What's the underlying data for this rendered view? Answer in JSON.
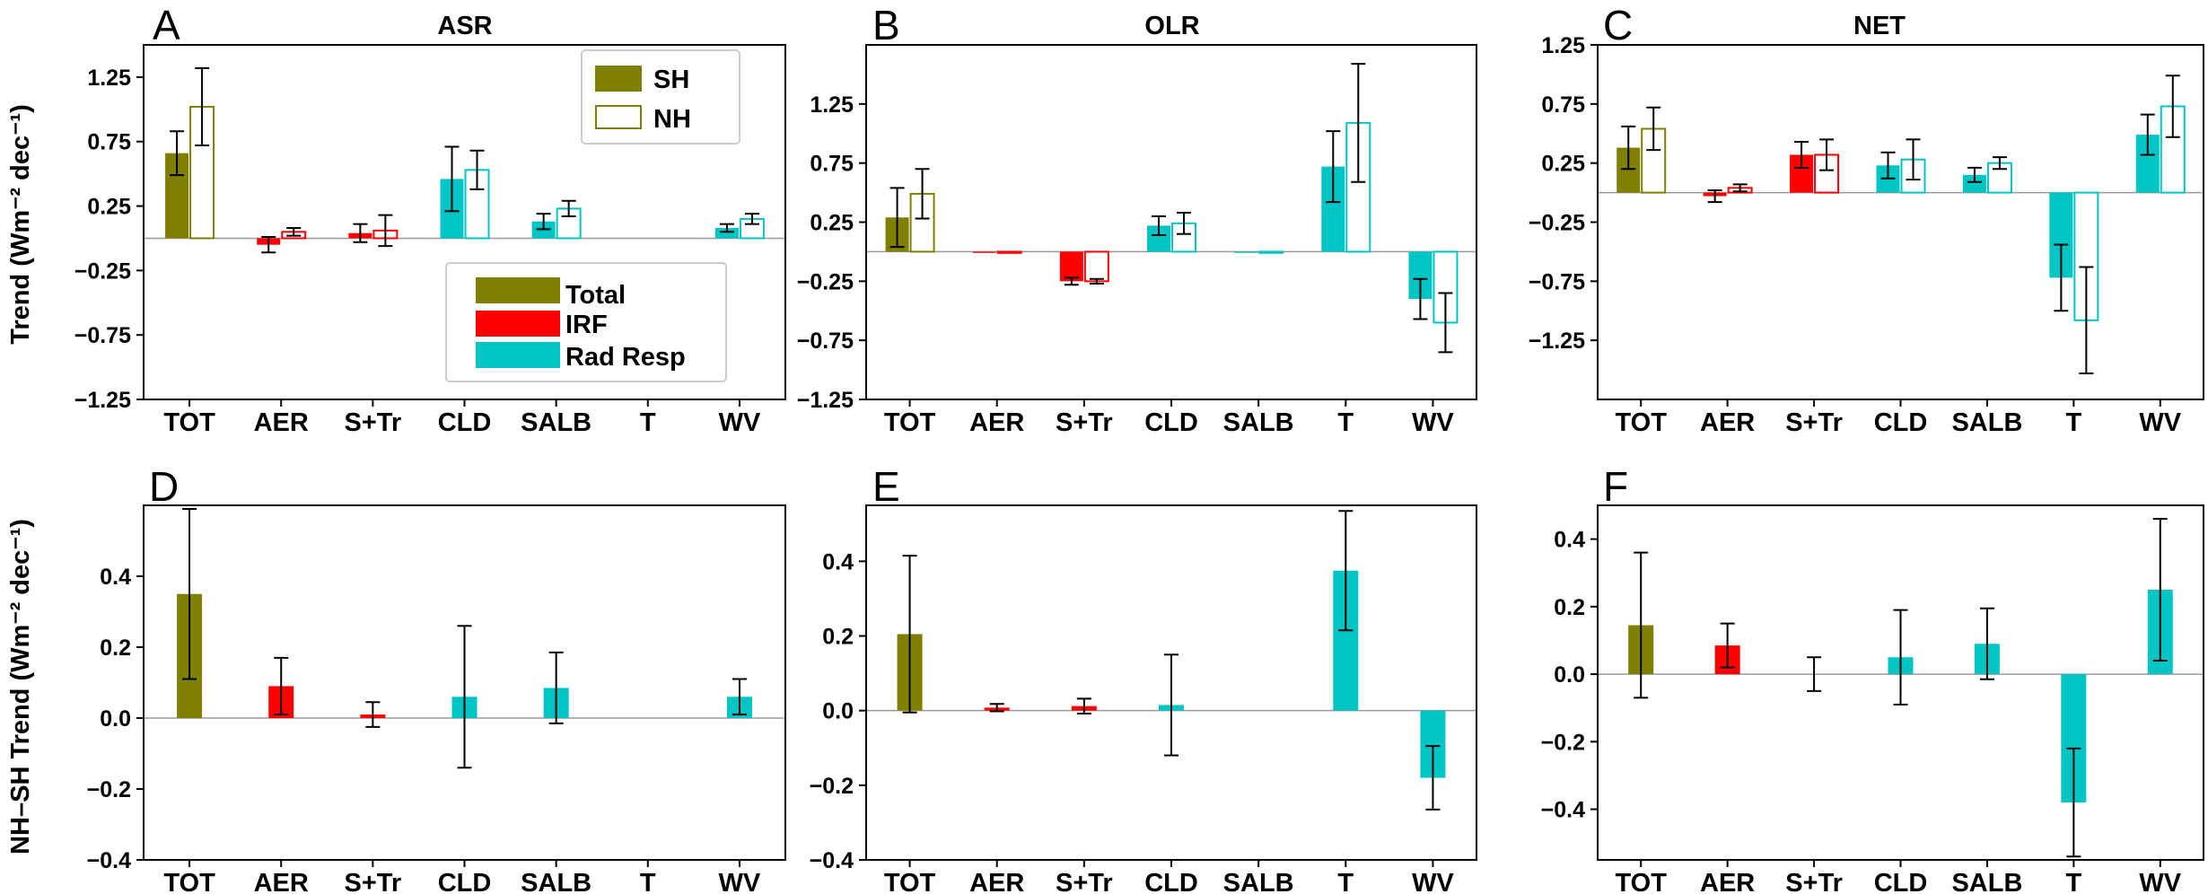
{
  "figure": {
    "ylabel_top": "Trend (Wm⁻² dec⁻¹)",
    "ylabel_bottom": "NH–SH Trend (Wm⁻² dec⁻¹)",
    "legend_hemisphere": [
      {
        "label": "SH",
        "style": "filled",
        "color": "#808000"
      },
      {
        "label": "NH",
        "style": "open",
        "color": "#808000"
      }
    ],
    "legend_components": [
      {
        "label": "Total",
        "color": "#808000"
      },
      {
        "label": "IRF",
        "color": "#ff0000"
      },
      {
        "label": "Rad Resp",
        "color": "#00c5c5"
      }
    ]
  },
  "chart_data": [
    {
      "type": "bar",
      "letter": "A",
      "title": "ASR",
      "categories": [
        "TOT",
        "AER",
        "S+Tr",
        "CLD",
        "SALB",
        "T",
        "WV"
      ],
      "colors": [
        "#808000",
        "#ff0000",
        "#ff0000",
        "#00c5c5",
        "#00c5c5",
        "#00c5c5",
        "#00c5c5"
      ],
      "ylim": [
        -1.25,
        1.5
      ],
      "yticks": [
        -1.25,
        -0.75,
        -0.25,
        0.25,
        0.75,
        1.25
      ],
      "ytick_labels": [
        "−1.25",
        "−0.75",
        "−0.25",
        "0.25",
        "0.75",
        "1.25"
      ],
      "series": [
        {
          "name": "SH",
          "style": "filled",
          "values": [
            0.66,
            -0.05,
            0.04,
            0.46,
            0.13,
            0.0,
            0.08
          ],
          "errors": [
            0.17,
            0.06,
            0.07,
            0.25,
            0.06,
            0.0,
            0.03
          ]
        },
        {
          "name": "NH",
          "style": "open",
          "values": [
            1.02,
            0.05,
            0.06,
            0.53,
            0.23,
            0.0,
            0.15
          ],
          "errors": [
            0.3,
            0.03,
            0.12,
            0.15,
            0.06,
            0.0,
            0.04
          ]
        }
      ]
    },
    {
      "type": "bar",
      "letter": "B",
      "title": "OLR",
      "categories": [
        "TOT",
        "AER",
        "S+Tr",
        "CLD",
        "SALB",
        "T",
        "WV"
      ],
      "colors": [
        "#808000",
        "#ff0000",
        "#ff0000",
        "#00c5c5",
        "#00c5c5",
        "#00c5c5",
        "#00c5c5"
      ],
      "ylim": [
        -1.25,
        1.75
      ],
      "yticks": [
        -1.25,
        -0.75,
        -0.25,
        0.25,
        0.75,
        1.25
      ],
      "ytick_labels": [
        "−1.25",
        "−0.75",
        "−0.25",
        "0.25",
        "0.75",
        "1.25"
      ],
      "series": [
        {
          "name": "SH",
          "style": "filled",
          "values": [
            0.29,
            -0.01,
            -0.25,
            0.22,
            -0.01,
            0.72,
            -0.4
          ],
          "errors": [
            0.25,
            0.0,
            0.03,
            0.08,
            0.0,
            0.3,
            0.17
          ]
        },
        {
          "name": "NH",
          "style": "open",
          "values": [
            0.49,
            -0.01,
            -0.25,
            0.24,
            -0.01,
            1.09,
            -0.6
          ],
          "errors": [
            0.21,
            0.0,
            0.02,
            0.09,
            0.0,
            0.5,
            0.25
          ]
        }
      ]
    },
    {
      "type": "bar",
      "letter": "C",
      "title": "NET",
      "categories": [
        "TOT",
        "AER",
        "S+Tr",
        "CLD",
        "SALB",
        "T",
        "WV"
      ],
      "colors": [
        "#808000",
        "#ff0000",
        "#ff0000",
        "#00c5c5",
        "#00c5c5",
        "#00c5c5",
        "#00c5c5"
      ],
      "ylim": [
        -1.75,
        1.25
      ],
      "yticks": [
        -1.25,
        -0.75,
        -0.25,
        0.25,
        0.75,
        1.25
      ],
      "ytick_labels": [
        "−1.25",
        "−0.75",
        "−0.25",
        "0.25",
        "0.75",
        "1.25"
      ],
      "series": [
        {
          "name": "SH",
          "style": "filled",
          "values": [
            0.38,
            -0.03,
            0.32,
            0.23,
            0.15,
            -0.72,
            0.49
          ],
          "errors": [
            0.18,
            0.05,
            0.11,
            0.11,
            0.06,
            0.28,
            0.17
          ]
        },
        {
          "name": "NH",
          "style": "open",
          "values": [
            0.54,
            0.04,
            0.32,
            0.28,
            0.25,
            -1.08,
            0.73
          ],
          "errors": [
            0.18,
            0.03,
            0.13,
            0.17,
            0.05,
            0.45,
            0.26
          ]
        }
      ]
    },
    {
      "type": "bar",
      "letter": "D",
      "title": "",
      "categories": [
        "TOT",
        "AER",
        "S+Tr",
        "CLD",
        "SALB",
        "T",
        "WV"
      ],
      "colors": [
        "#808000",
        "#ff0000",
        "#ff0000",
        "#00c5c5",
        "#00c5c5",
        "#00c5c5",
        "#00c5c5"
      ],
      "ylim": [
        -0.4,
        0.6
      ],
      "yticks": [
        -0.4,
        -0.2,
        0.0,
        0.2,
        0.4
      ],
      "ytick_labels": [
        "−0.4",
        "−0.2",
        "0.0",
        "0.2",
        "0.4"
      ],
      "series": [
        {
          "name": "NH–SH",
          "style": "filled",
          "values": [
            0.35,
            0.09,
            0.01,
            0.06,
            0.085,
            0.0,
            0.06
          ],
          "errors": [
            0.24,
            0.08,
            0.035,
            0.2,
            0.1,
            0.0,
            0.05
          ]
        }
      ]
    },
    {
      "type": "bar",
      "letter": "E",
      "title": "",
      "categories": [
        "TOT",
        "AER",
        "S+Tr",
        "CLD",
        "SALB",
        "T",
        "WV"
      ],
      "colors": [
        "#808000",
        "#ff0000",
        "#ff0000",
        "#00c5c5",
        "#00c5c5",
        "#00c5c5",
        "#00c5c5"
      ],
      "ylim": [
        -0.4,
        0.55
      ],
      "yticks": [
        -0.4,
        -0.2,
        0.0,
        0.2,
        0.4
      ],
      "ytick_labels": [
        "−0.4",
        "−0.2",
        "0.0",
        "0.2",
        "0.4"
      ],
      "series": [
        {
          "name": "NH–SH",
          "style": "filled",
          "values": [
            0.205,
            0.008,
            0.012,
            0.015,
            0.0,
            0.375,
            -0.18
          ],
          "errors": [
            0.21,
            0.01,
            0.02,
            0.135,
            0.0,
            0.16,
            0.085
          ]
        }
      ]
    },
    {
      "type": "bar",
      "letter": "F",
      "title": "",
      "categories": [
        "TOT",
        "AER",
        "S+Tr",
        "CLD",
        "SALB",
        "T",
        "WV"
      ],
      "colors": [
        "#808000",
        "#ff0000",
        "#ff0000",
        "#00c5c5",
        "#00c5c5",
        "#00c5c5",
        "#00c5c5"
      ],
      "ylim": [
        -0.55,
        0.5
      ],
      "yticks": [
        -0.4,
        -0.2,
        0.0,
        0.2,
        0.4
      ],
      "ytick_labels": [
        "−0.4",
        "−0.2",
        "0.0",
        "0.2",
        "0.4"
      ],
      "series": [
        {
          "name": "NH–SH",
          "style": "filled",
          "values": [
            0.145,
            0.085,
            0.0,
            0.05,
            0.09,
            -0.38,
            0.25
          ],
          "errors": [
            0.215,
            0.065,
            0.05,
            0.14,
            0.105,
            0.16,
            0.21
          ]
        }
      ]
    }
  ]
}
